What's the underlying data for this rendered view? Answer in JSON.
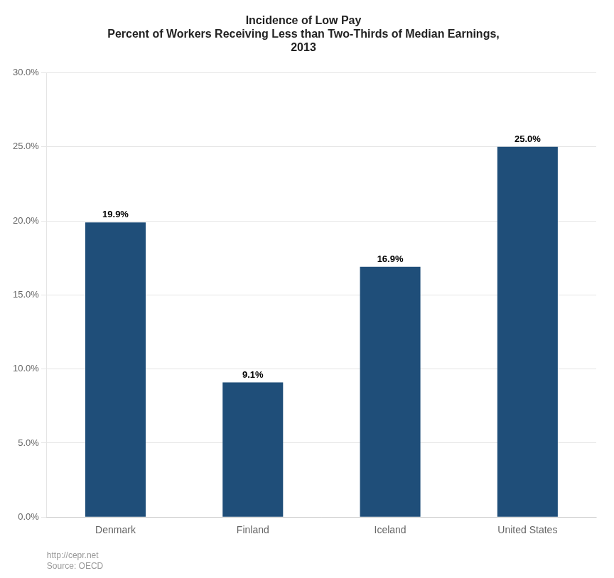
{
  "chart_data": {
    "type": "bar",
    "title": "Incidence of Low Pay\nPercent of Workers Receiving Less than Two-Thirds of Median Earnings,\n2013",
    "categories": [
      "Denmark",
      "Finland",
      "Iceland",
      "United States"
    ],
    "values": [
      0.199,
      0.091,
      0.169,
      0.25
    ],
    "value_labels": [
      "19.9%",
      "9.1%",
      "16.9%",
      "25.0%"
    ],
    "color": "#1F4E79",
    "ylim": [
      0,
      0.3
    ],
    "yticks": [
      {
        "value": 0.0,
        "label": "0.0%"
      },
      {
        "value": 0.05,
        "label": "5.0%"
      },
      {
        "value": 0.1,
        "label": "10.0%"
      },
      {
        "value": 0.15,
        "label": "15.0%"
      },
      {
        "value": 0.2,
        "label": "20.0%"
      },
      {
        "value": 0.25,
        "label": "25.0%"
      },
      {
        "value": 0.3,
        "label": "30.0%"
      }
    ],
    "grid": true,
    "data_labels": true,
    "annotations": [
      "http://cepr.net\nSource: OECD"
    ]
  }
}
